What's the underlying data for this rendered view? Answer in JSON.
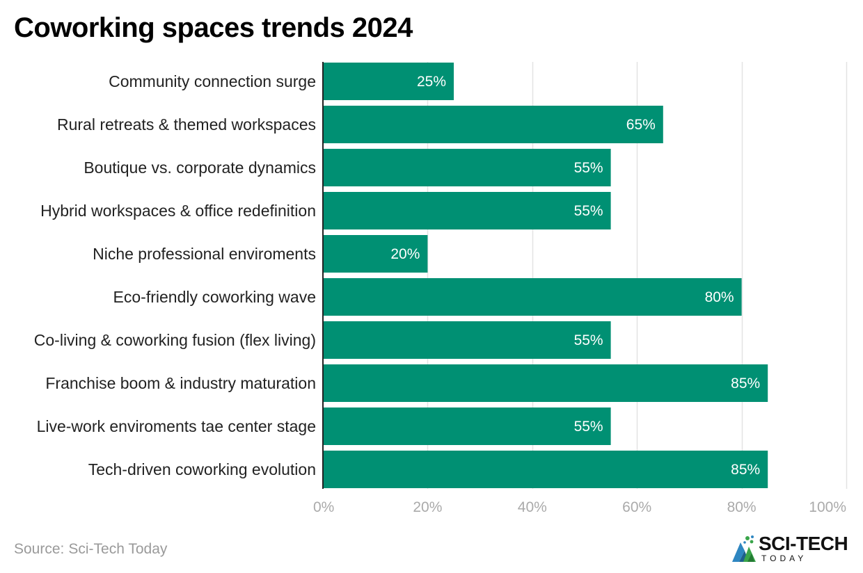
{
  "title": "Coworking spaces trends 2024",
  "source": {
    "label": "Source:",
    "value": "Sci-Tech Today"
  },
  "logo": {
    "name": "SCI-TECH",
    "sub": "TODAY",
    "icon": "sci-tech-logo-icon"
  },
  "colors": {
    "bar": "#009073",
    "grid": "#e3e3e3",
    "axis": "#222222",
    "tick": "#aaaaaa"
  },
  "chart_data": {
    "type": "bar",
    "orientation": "horizontal",
    "title": "Coworking spaces trends 2024",
    "categories": [
      "Community connection surge",
      "Rural retreats & themed workspaces",
      "Boutique vs. corporate dynamics",
      "Hybrid workspaces & office redefinition",
      "Niche professional enviroments",
      "Eco-friendly coworking wave",
      "Co-living & coworking fusion (flex living)",
      "Franchise boom & industry maturation",
      "Live-work enviroments tae center stage",
      "Tech-driven coworking evolution"
    ],
    "values": [
      25,
      65,
      55,
      55,
      20,
      80,
      55,
      85,
      55,
      85
    ],
    "value_labels": [
      "25%",
      "65%",
      "55%",
      "55%",
      "20%",
      "80%",
      "55%",
      "85%",
      "55%",
      "85%"
    ],
    "xlim": [
      0,
      100
    ],
    "xticks": [
      0,
      20,
      40,
      60,
      80,
      100
    ],
    "xtick_labels": [
      "0%",
      "20%",
      "40%",
      "60%",
      "80%",
      "100%"
    ],
    "grid": true,
    "legend": false,
    "xlabel": "",
    "ylabel": ""
  }
}
